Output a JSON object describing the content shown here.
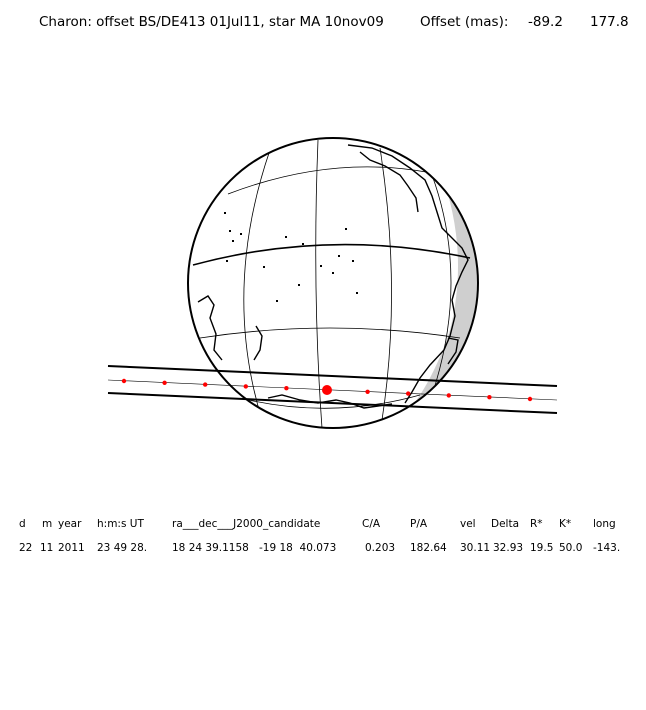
{
  "title": {
    "body": "Charon: offset BS/DE413 01Jul11, star MA 10nov09",
    "offset_label": "Offset (mas):",
    "offset_ra": "-89.2",
    "offset_dec": "177.8"
  },
  "track": {
    "dots": 11,
    "highlight_index": 5,
    "dot_color": "#ff0000"
  },
  "table": {
    "headers": [
      "d",
      "m",
      "year",
      "h:m:s UT",
      "ra___dec___J2000_candidate",
      "C/A",
      "P/A",
      "vel",
      "Delta",
      "R*",
      "K*",
      "long"
    ],
    "values": [
      "22",
      "11",
      "2011",
      "23 49 28.",
      "18 24 39.1158",
      "-19 18  40.073",
      "0.203",
      "182.64",
      "30.11",
      "32.93",
      "19.5",
      "50.0",
      "-143."
    ]
  }
}
